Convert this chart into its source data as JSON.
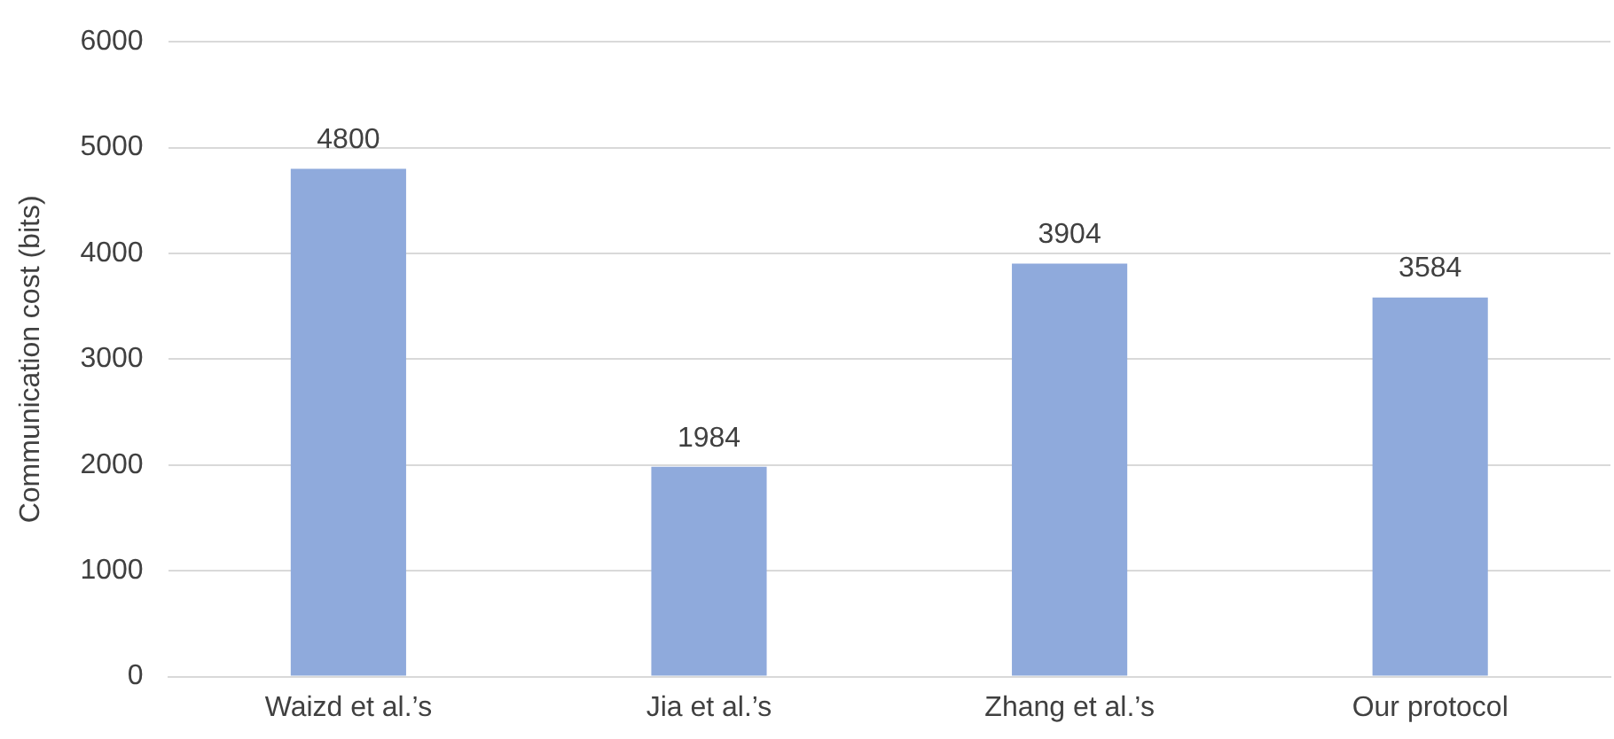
{
  "chart_data": {
    "type": "bar",
    "ylabel": "Communication cost (bits)",
    "categories": [
      "Waizd et al.’s",
      "Jia et al.’s",
      "Zhang et al.’s",
      "Our protocol"
    ],
    "values": [
      4800,
      1984,
      3904,
      3584
    ],
    "color": "#8faadc",
    "ylim": [
      0,
      6000
    ],
    "yticks": [
      0,
      1000,
      2000,
      3000,
      4000,
      5000,
      6000
    ],
    "grid": "y",
    "data_labels": true,
    "legend": false
  }
}
